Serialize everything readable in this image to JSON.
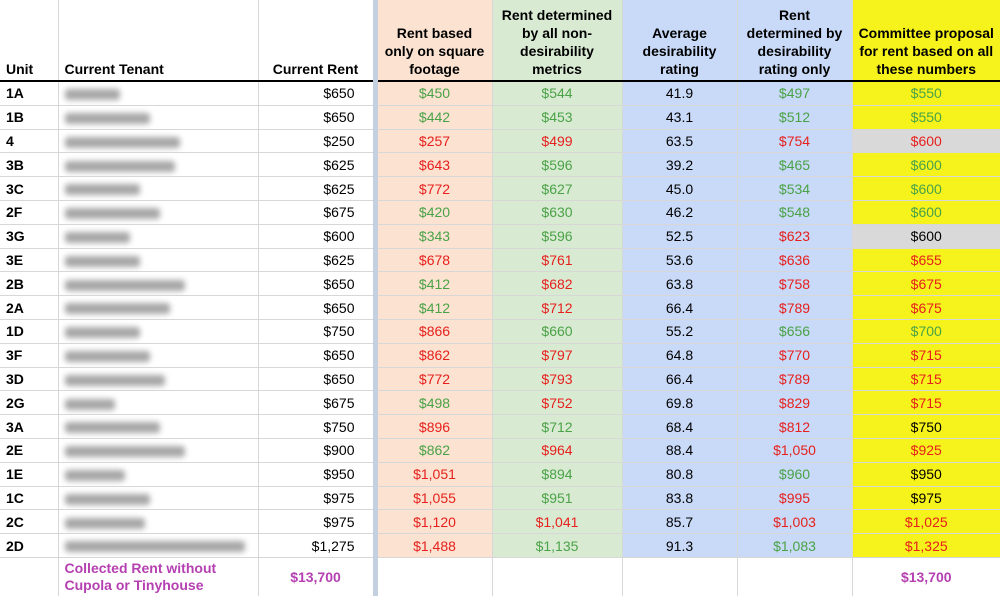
{
  "headers": {
    "unit": "Unit",
    "tenant": "Current Tenant",
    "current_rent": "Current Rent",
    "sqft": "Rent based only on square footage",
    "nondesir": "Rent determined by all non-desirability metrics",
    "avg_desir": "Average desirability rating",
    "desir_only": "Rent determined by desirability rating only",
    "committee": "Committee proposal for rent based on all these numbers"
  },
  "rows": [
    {
      "unit": "1A",
      "current": "$650",
      "sqft": "$450",
      "sqft_c": "g",
      "nond": "$544",
      "nond_c": "g",
      "avg": "41.9",
      "des": "$497",
      "des_c": "g",
      "com": "$550",
      "com_c": "g",
      "com_bg": "yellow",
      "blur_w": 55
    },
    {
      "unit": "1B",
      "current": "$650",
      "sqft": "$442",
      "sqft_c": "g",
      "nond": "$453",
      "nond_c": "g",
      "avg": "43.1",
      "des": "$512",
      "des_c": "g",
      "com": "$550",
      "com_c": "g",
      "com_bg": "yellow",
      "blur_w": 85
    },
    {
      "unit": "4",
      "current": "$250",
      "sqft": "$257",
      "sqft_c": "r",
      "nond": "$499",
      "nond_c": "r",
      "avg": "63.5",
      "des": "$754",
      "des_c": "r",
      "com": "$600",
      "com_c": "r",
      "com_bg": "grey",
      "blur_w": 115
    },
    {
      "unit": "3B",
      "current": "$625",
      "sqft": "$643",
      "sqft_c": "r",
      "nond": "$596",
      "nond_c": "g",
      "avg": "39.2",
      "des": "$465",
      "des_c": "g",
      "com": "$600",
      "com_c": "g",
      "com_bg": "yellow",
      "blur_w": 110
    },
    {
      "unit": "3C",
      "current": "$625",
      "sqft": "$772",
      "sqft_c": "r",
      "nond": "$627",
      "nond_c": "g",
      "avg": "45.0",
      "des": "$534",
      "des_c": "g",
      "com": "$600",
      "com_c": "g",
      "com_bg": "yellow",
      "blur_w": 75
    },
    {
      "unit": "2F",
      "current": "$675",
      "sqft": "$420",
      "sqft_c": "g",
      "nond": "$630",
      "nond_c": "g",
      "avg": "46.2",
      "des": "$548",
      "des_c": "g",
      "com": "$600",
      "com_c": "g",
      "com_bg": "yellow",
      "blur_w": 95
    },
    {
      "unit": "3G",
      "current": "$600",
      "sqft": "$343",
      "sqft_c": "g",
      "nond": "$596",
      "nond_c": "g",
      "avg": "52.5",
      "des": "$623",
      "des_c": "r",
      "com": "$600",
      "com_c": "k",
      "com_bg": "grey",
      "blur_w": 65
    },
    {
      "unit": "3E",
      "current": "$625",
      "sqft": "$678",
      "sqft_c": "r",
      "nond": "$761",
      "nond_c": "r",
      "avg": "53.6",
      "des": "$636",
      "des_c": "r",
      "com": "$655",
      "com_c": "r",
      "com_bg": "yellow",
      "blur_w": 75
    },
    {
      "unit": "2B",
      "current": "$650",
      "sqft": "$412",
      "sqft_c": "g",
      "nond": "$682",
      "nond_c": "r",
      "avg": "63.8",
      "des": "$758",
      "des_c": "r",
      "com": "$675",
      "com_c": "r",
      "com_bg": "yellow",
      "blur_w": 120
    },
    {
      "unit": "2A",
      "current": "$650",
      "sqft": "$412",
      "sqft_c": "g",
      "nond": "$712",
      "nond_c": "r",
      "avg": "66.4",
      "des": "$789",
      "des_c": "r",
      "com": "$675",
      "com_c": "r",
      "com_bg": "yellow",
      "blur_w": 105
    },
    {
      "unit": "1D",
      "current": "$750",
      "sqft": "$866",
      "sqft_c": "r",
      "nond": "$660",
      "nond_c": "g",
      "avg": "55.2",
      "des": "$656",
      "des_c": "g",
      "com": "$700",
      "com_c": "g",
      "com_bg": "yellow",
      "blur_w": 75
    },
    {
      "unit": "3F",
      "current": "$650",
      "sqft": "$862",
      "sqft_c": "r",
      "nond": "$797",
      "nond_c": "r",
      "avg": "64.8",
      "des": "$770",
      "des_c": "r",
      "com": "$715",
      "com_c": "r",
      "com_bg": "yellow",
      "blur_w": 85
    },
    {
      "unit": "3D",
      "current": "$650",
      "sqft": "$772",
      "sqft_c": "r",
      "nond": "$793",
      "nond_c": "r",
      "avg": "66.4",
      "des": "$789",
      "des_c": "r",
      "com": "$715",
      "com_c": "r",
      "com_bg": "yellow",
      "blur_w": 100
    },
    {
      "unit": "2G",
      "current": "$675",
      "sqft": "$498",
      "sqft_c": "g",
      "nond": "$752",
      "nond_c": "r",
      "avg": "69.8",
      "des": "$829",
      "des_c": "r",
      "com": "$715",
      "com_c": "r",
      "com_bg": "yellow",
      "blur_w": 50
    },
    {
      "unit": "3A",
      "current": "$750",
      "sqft": "$896",
      "sqft_c": "r",
      "nond": "$712",
      "nond_c": "g",
      "avg": "68.4",
      "des": "$812",
      "des_c": "r",
      "com": "$750",
      "com_c": "k",
      "com_bg": "yellow",
      "blur_w": 95
    },
    {
      "unit": "2E",
      "current": "$900",
      "sqft": "$862",
      "sqft_c": "g",
      "nond": "$964",
      "nond_c": "r",
      "avg": "88.4",
      "des": "$1,050",
      "des_c": "r",
      "com": "$925",
      "com_c": "r",
      "com_bg": "yellow",
      "blur_w": 120
    },
    {
      "unit": "1E",
      "current": "$950",
      "sqft": "$1,051",
      "sqft_c": "r",
      "nond": "$894",
      "nond_c": "g",
      "avg": "80.8",
      "des": "$960",
      "des_c": "g",
      "com": "$950",
      "com_c": "k",
      "com_bg": "yellow",
      "blur_w": 60
    },
    {
      "unit": "1C",
      "current": "$975",
      "sqft": "$1,055",
      "sqft_c": "r",
      "nond": "$951",
      "nond_c": "g",
      "avg": "83.8",
      "des": "$995",
      "des_c": "r",
      "com": "$975",
      "com_c": "k",
      "com_bg": "yellow",
      "blur_w": 85
    },
    {
      "unit": "2C",
      "current": "$975",
      "sqft": "$1,120",
      "sqft_c": "r",
      "nond": "$1,041",
      "nond_c": "r",
      "avg": "85.7",
      "des": "$1,003",
      "des_c": "r",
      "com": "$1,025",
      "com_c": "r",
      "com_bg": "yellow",
      "blur_w": 80
    },
    {
      "unit": "2D",
      "current": "$1,275",
      "sqft": "$1,488",
      "sqft_c": "r",
      "nond": "$1,135",
      "nond_c": "g",
      "avg": "91.3",
      "des": "$1,083",
      "des_c": "g",
      "com": "$1,325",
      "com_c": "r",
      "com_bg": "yellow",
      "blur_w": 180
    }
  ],
  "footer": {
    "label": "Collected Rent without Cupola or Tinyhouse",
    "current_total": "$13,700",
    "committee_total": "$13,700"
  }
}
